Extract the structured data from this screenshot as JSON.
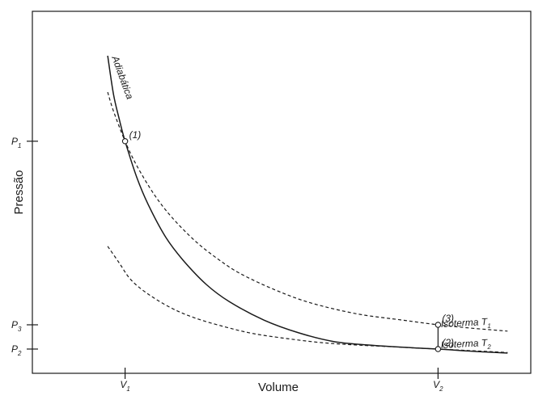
{
  "chart_data": {
    "type": "line",
    "title": "",
    "xlabel": "Volume",
    "ylabel": "Pressão",
    "grid": false,
    "legend": "none",
    "colors": {
      "curve": "#1a1a1a",
      "marker_fill": "#ffffff"
    },
    "x_ticks": [
      {
        "base": "V",
        "sub": "1",
        "value": 1.0
      },
      {
        "base": "V",
        "sub": "2",
        "value": 3.7
      }
    ],
    "y_ticks": [
      {
        "base": "P",
        "sub": "1",
        "value": 4.6
      },
      {
        "base": "P",
        "sub": "3",
        "value": 1.42
      },
      {
        "base": "P",
        "sub": "2",
        "value": 1.0
      }
    ],
    "xlim": [
      0.2,
      4.5
    ],
    "ylim": [
      0.58,
      6.85
    ],
    "series": [
      {
        "name": "Adiabática",
        "style": "solid",
        "x": [
          0.85,
          0.9,
          0.95,
          1.0,
          1.1,
          1.2,
          1.35,
          1.5,
          1.7,
          1.9,
          2.2,
          2.5,
          2.8,
          3.1,
          3.4,
          3.7,
          4.0,
          4.3
        ],
        "y": [
          6.08,
          5.41,
          4.98,
          4.6,
          3.98,
          3.5,
          2.94,
          2.54,
          2.12,
          1.82,
          1.5,
          1.28,
          1.13,
          1.07,
          1.03,
          1.0,
          0.96,
          0.93
        ]
      },
      {
        "name": "Isoterma T1",
        "label_base": "Isoterma T",
        "label_sub": "1",
        "style": "dashed",
        "x": [
          0.85,
          0.9,
          1.0,
          1.1,
          1.25,
          1.4,
          1.6,
          1.8,
          2.0,
          2.3,
          2.6,
          3.0,
          3.4,
          3.7,
          4.0,
          4.3
        ],
        "y": [
          5.45,
          5.12,
          4.6,
          4.18,
          3.68,
          3.29,
          2.88,
          2.56,
          2.3,
          2.02,
          1.8,
          1.61,
          1.5,
          1.42,
          1.36,
          1.31
        ]
      },
      {
        "name": "Isoterma T2",
        "label_base": "Isoterma T",
        "label_sub": "2",
        "style": "dashed",
        "x": [
          0.85,
          0.95,
          1.05,
          1.2,
          1.4,
          1.6,
          1.85,
          2.1,
          2.4,
          2.7,
          3.0,
          3.3,
          3.7,
          4.0,
          4.3
        ],
        "y": [
          2.78,
          2.49,
          2.2,
          1.95,
          1.71,
          1.54,
          1.39,
          1.27,
          1.18,
          1.11,
          1.07,
          1.04,
          1.0,
          0.97,
          0.94
        ]
      }
    ],
    "points": [
      {
        "label": "(1)",
        "x": 1.0,
        "y": 4.6
      },
      {
        "label": "(2)",
        "x": 3.7,
        "y": 1.0
      },
      {
        "label": "(3)",
        "x": 3.7,
        "y": 1.42
      }
    ],
    "connectors": [
      {
        "x": 3.7,
        "y_from": 1.0,
        "y_to": 1.42
      }
    ]
  }
}
